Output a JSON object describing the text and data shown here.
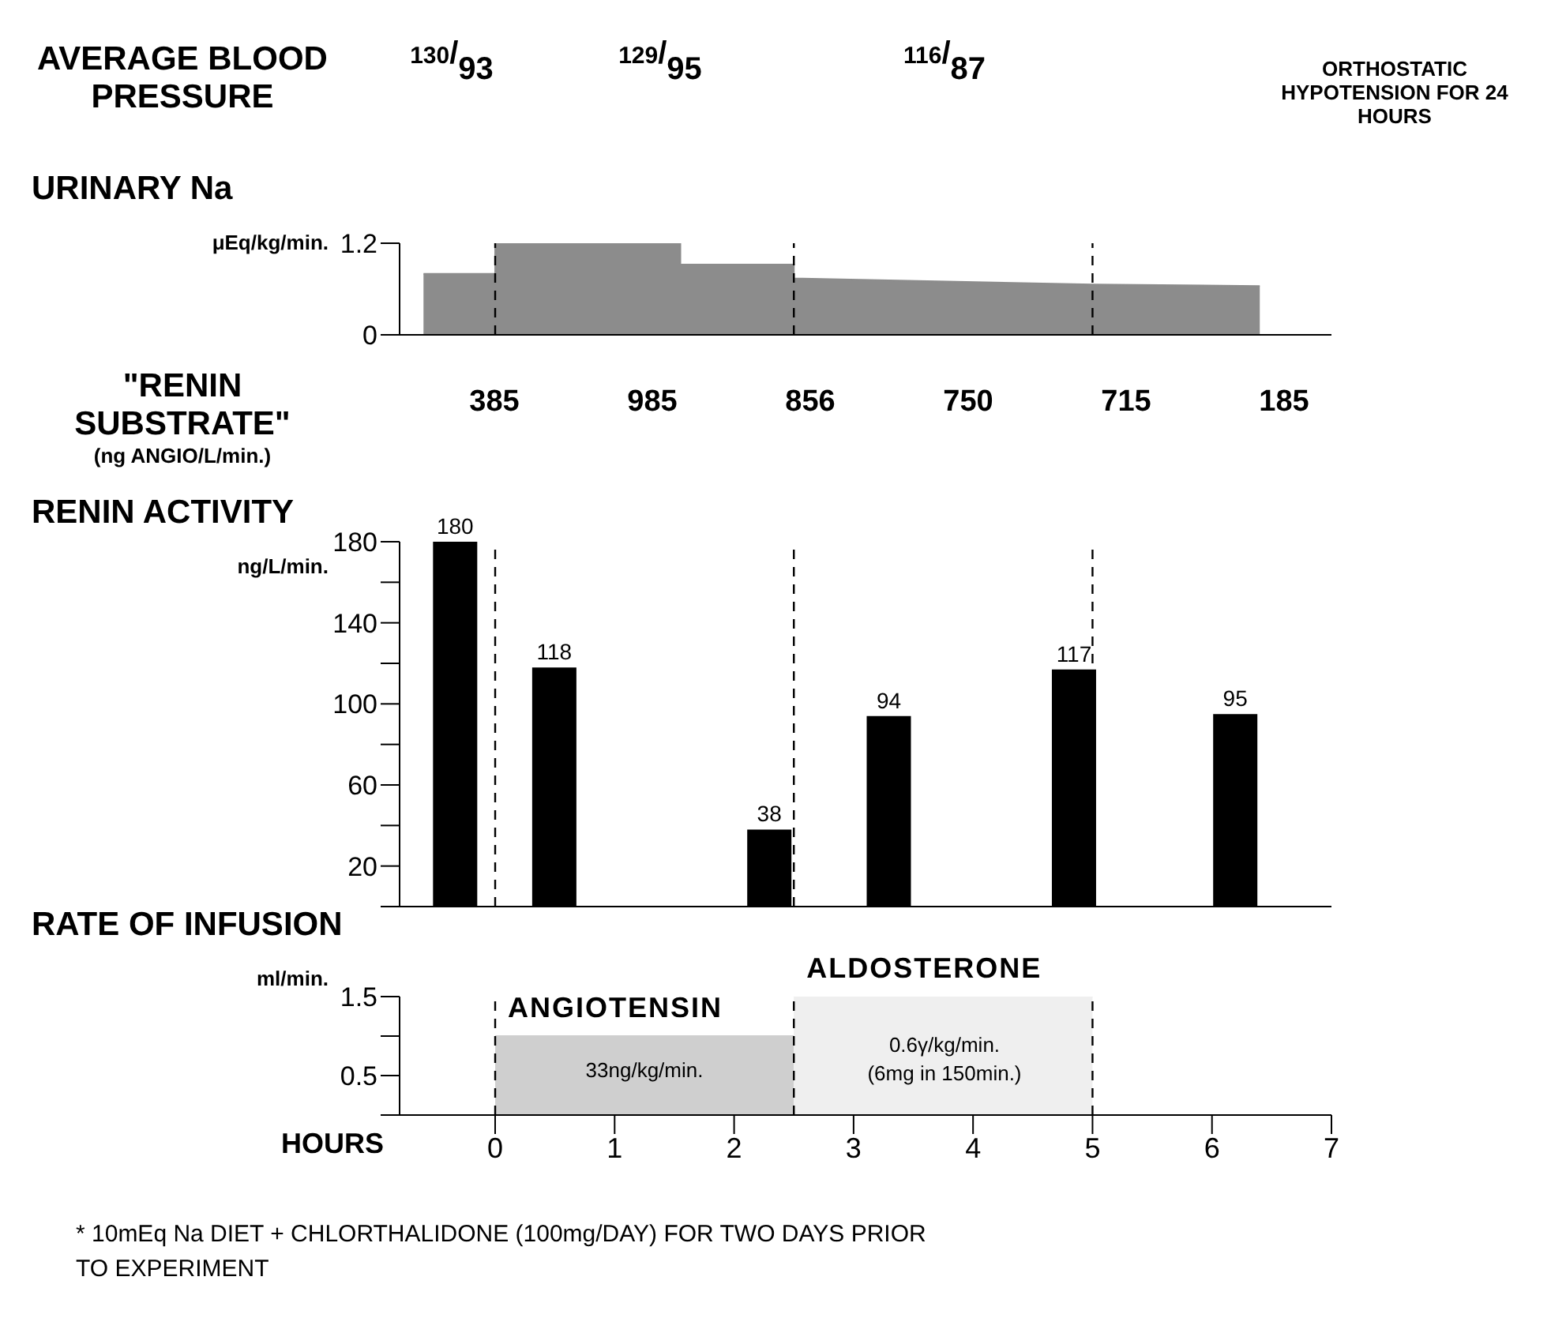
{
  "chart_data": [
    {
      "type": "other",
      "title": "AVERAGE BLOOD PRESSURE",
      "annotations": [
        "130/93",
        "129/95",
        "116/87",
        "ORTHOSTATIC HYPOTENSION FOR 24 HOURS"
      ]
    },
    {
      "type": "area",
      "title": "URINARY Na",
      "ylabel": "μEq/kg/min.",
      "xlim": [
        -0.8,
        7
      ],
      "ylim": [
        0,
        1.2
      ],
      "yticks": [
        0,
        1.2
      ],
      "tick_labels": "y",
      "series": [
        {
          "color": "#8c8c8c",
          "x": [
            -0.6,
            0,
            0,
            1.55,
            1.55,
            2.5,
            2.5,
            5,
            6.4
          ],
          "values": [
            0.8,
            0.8,
            1.2,
            1.2,
            0.92,
            0.92,
            0.74,
            0.66,
            0.64
          ]
        }
      ],
      "ref_lines": [
        {
          "axis": "x",
          "value": 0,
          "line_style": "dashed"
        },
        {
          "axis": "x",
          "value": 2.5,
          "line_style": "dashed"
        },
        {
          "axis": "x",
          "value": 5,
          "line_style": "dashed"
        }
      ]
    },
    {
      "type": "other",
      "title": "\"RENIN SUBSTRATE\"",
      "ylabel": "(ng ANGIO/L/min.)",
      "categories": [
        null,
        null,
        null,
        null,
        null,
        null
      ],
      "values": [
        385,
        985,
        856,
        750,
        715,
        185
      ],
      "data_labels": true
    },
    {
      "type": "bar",
      "title": "RENIN ACTIVITY",
      "ylabel": "ng/L/min.",
      "xlim": [
        -0.8,
        7
      ],
      "ylim": [
        0,
        180
      ],
      "yticks": [
        {
          "value": 0,
          "label": null
        },
        20,
        {
          "value": 40,
          "label": null
        },
        60,
        {
          "value": 80,
          "label": null
        },
        100,
        {
          "value": 120,
          "label": null
        },
        140,
        {
          "value": 160,
          "label": null
        },
        180
      ],
      "tick_labels": "y",
      "data_labels": true,
      "series": [
        {
          "color": "#000000",
          "x": [
            -0.33,
            0.5,
            2.3,
            3.3,
            4.85,
            6.2
          ],
          "values": [
            180,
            118,
            38,
            94,
            117,
            95
          ]
        }
      ],
      "ref_lines": [
        {
          "axis": "x",
          "value": 0,
          "line_style": "dashed"
        },
        {
          "axis": "x",
          "value": 2.5,
          "line_style": "dashed"
        },
        {
          "axis": "x",
          "value": 5,
          "line_style": "dashed"
        }
      ]
    },
    {
      "type": "area",
      "title": "RATE OF INFUSION",
      "ylabel": "ml/min.",
      "xlabel": "HOURS",
      "xlim": [
        -0.8,
        7
      ],
      "ylim": [
        0,
        1.5
      ],
      "yticks": [
        {
          "value": 0,
          "label": null
        },
        0.5,
        {
          "value": 1,
          "label": null
        },
        1.5
      ],
      "xticks": [
        0,
        1,
        2,
        3,
        4,
        5,
        6,
        7
      ],
      "series": [
        {
          "name": "ANGIOTENSIN",
          "color": "#cfcfcf",
          "x": [
            0,
            2.5
          ],
          "values": [
            1.0,
            1.0
          ]
        },
        {
          "name": "ALDOSTERONE",
          "color": "#efefef",
          "x": [
            2.5,
            5
          ],
          "values": [
            1.5,
            1.5
          ]
        }
      ],
      "ref_lines": [
        {
          "axis": "x",
          "value": 0,
          "line_style": "dashed"
        },
        {
          "axis": "x",
          "value": 2.5,
          "line_style": "dashed"
        },
        {
          "axis": "x",
          "value": 5,
          "line_style": "dashed"
        }
      ],
      "annotations": [
        "33ng/kg/min.",
        "0.6γ/kg/min.",
        "(6mg in 150min.)",
        "* 10mEq Na DIET + CHLORTHALIDONE (100mg/DAY) FOR TWO DAYS PRIOR TO EXPERIMENT"
      ]
    }
  ]
}
